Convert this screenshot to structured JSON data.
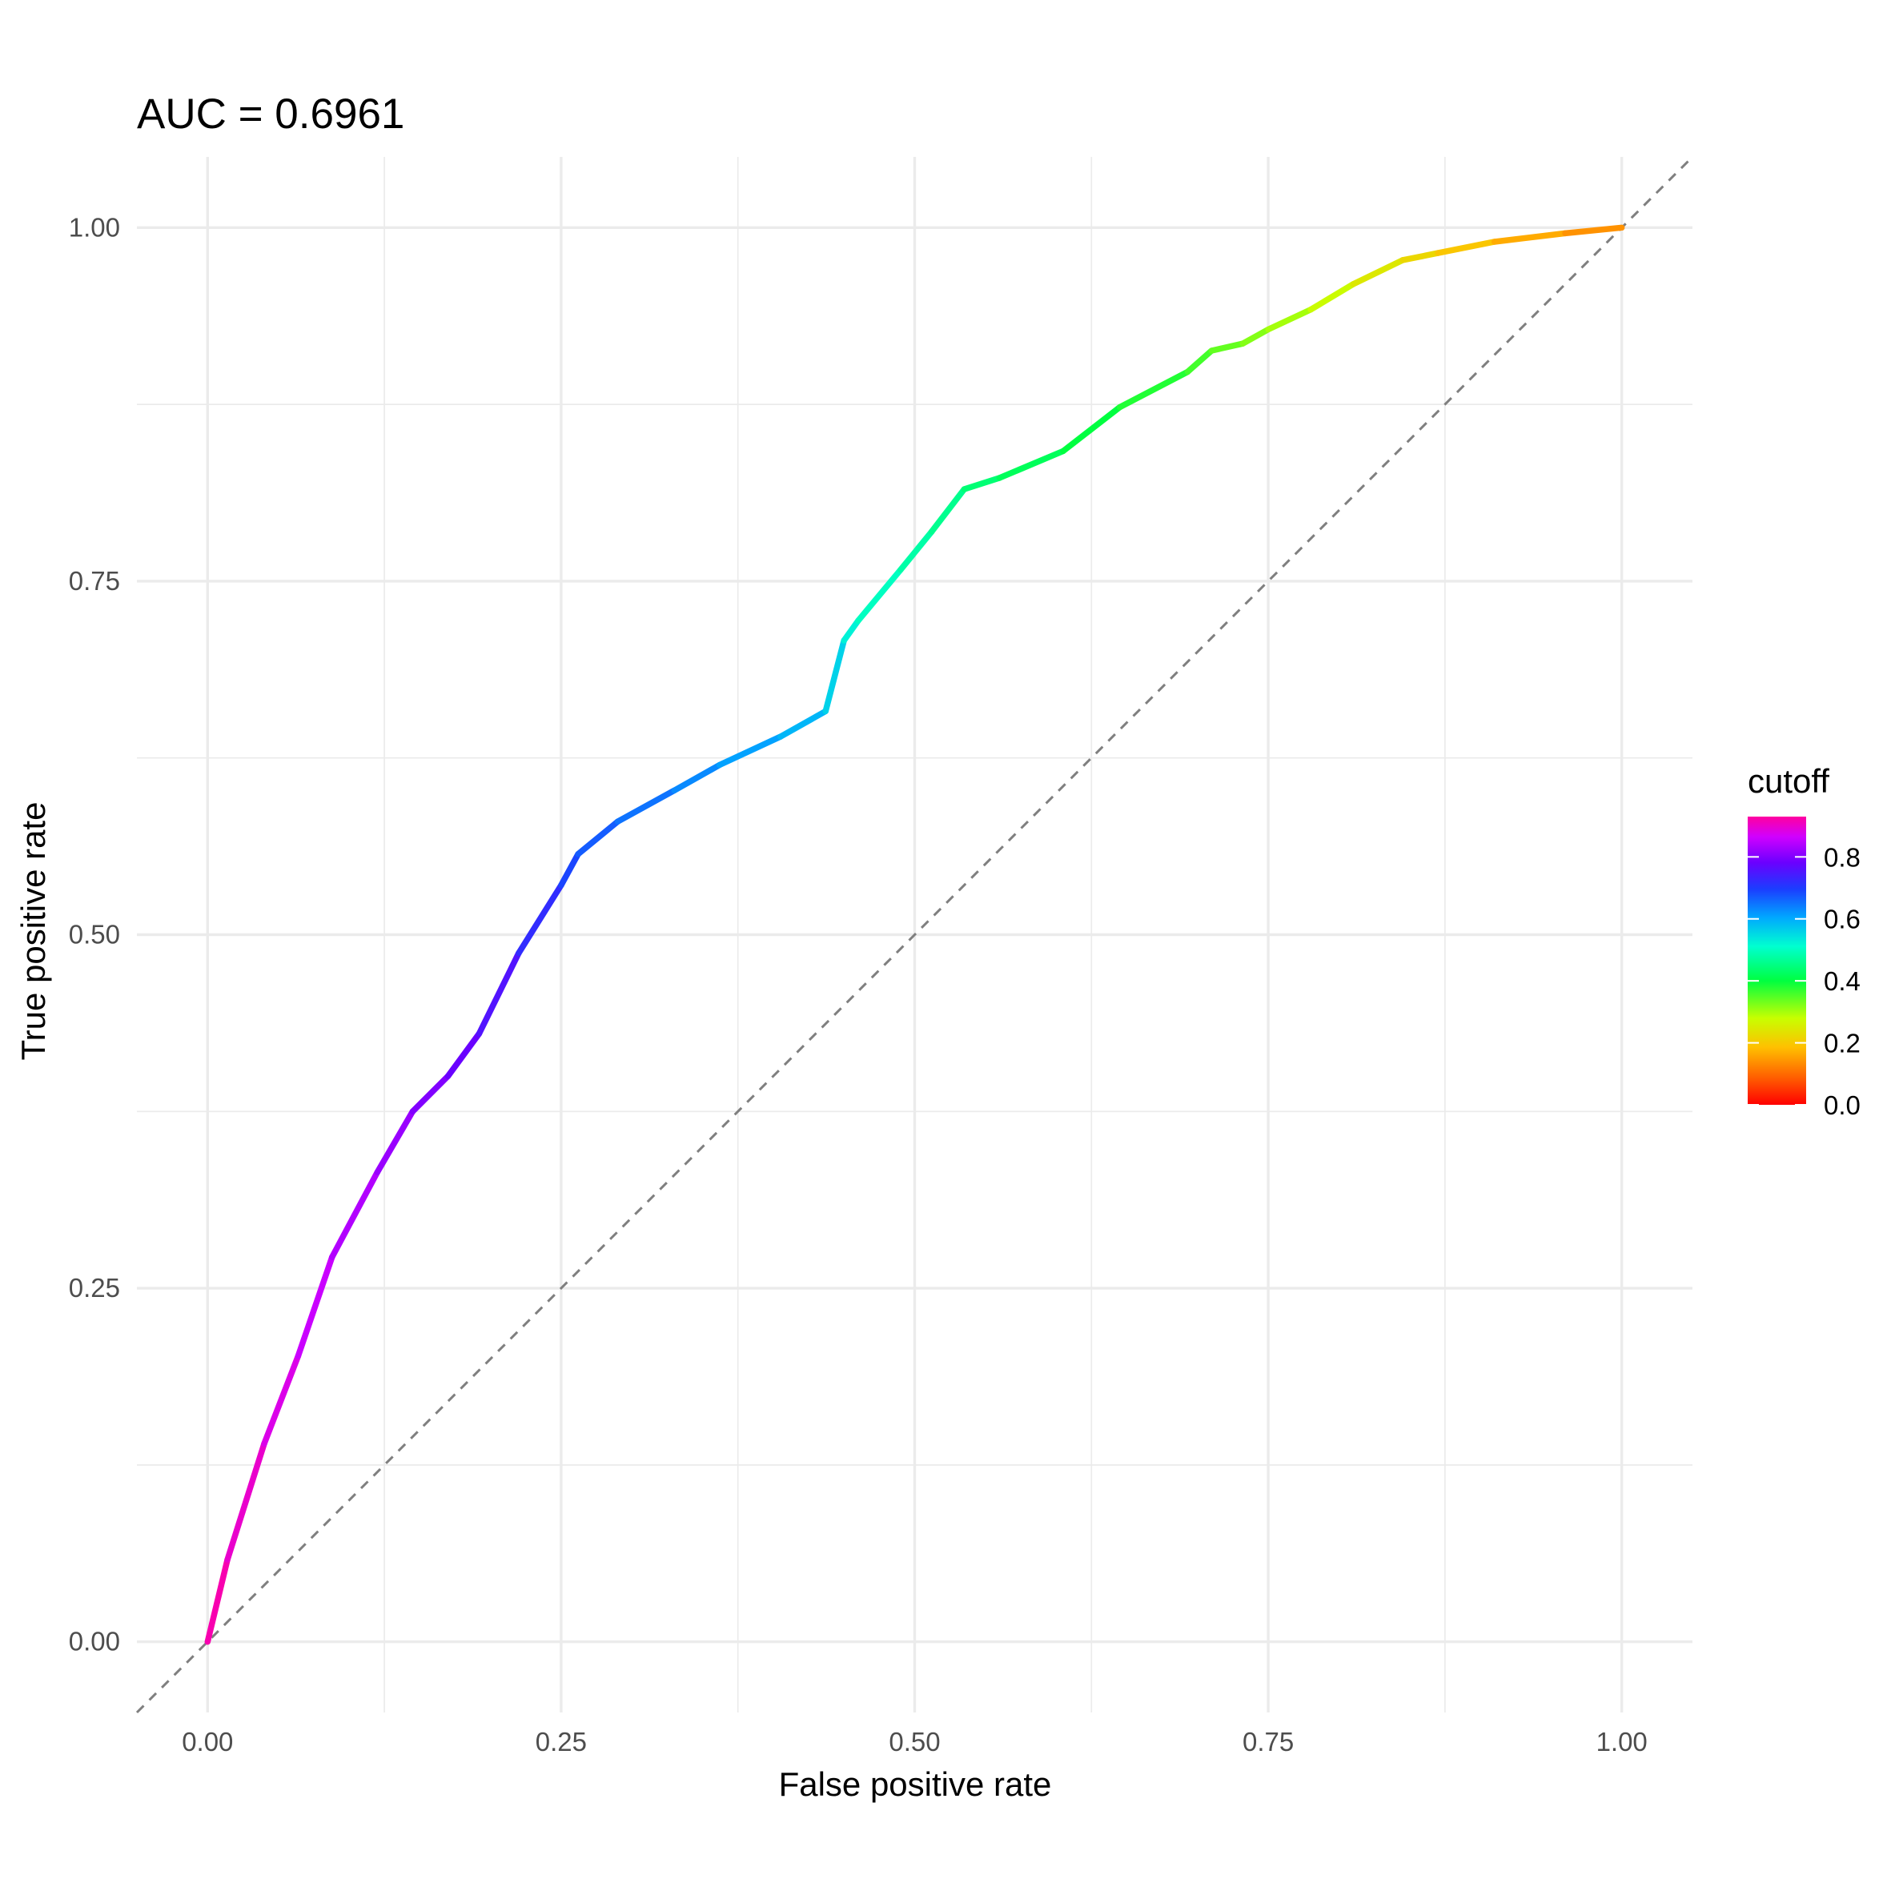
{
  "chart_data": {
    "type": "line",
    "title": "AUC = 0.6961",
    "xlabel": "False positive rate",
    "ylabel": "True positive rate",
    "xlim": [
      -0.05,
      1.05
    ],
    "ylim": [
      -0.05,
      1.05
    ],
    "x_ticks": [
      "0.00",
      "0.25",
      "0.50",
      "0.75",
      "1.00"
    ],
    "y_ticks": [
      "0.00",
      "0.25",
      "0.50",
      "0.75",
      "1.00"
    ],
    "grid": true,
    "reference_line": {
      "from": [
        0,
        0
      ],
      "to": [
        1,
        1
      ],
      "style": "dashed",
      "color": "#7f7f7f"
    },
    "series": [
      {
        "points": [
          {
            "x": 0.0,
            "y": 0.0,
            "cutoff": 0.93
          },
          {
            "x": 0.014,
            "y": 0.058,
            "cutoff": 0.91
          },
          {
            "x": 0.04,
            "y": 0.14,
            "cutoff": 0.89
          },
          {
            "x": 0.064,
            "y": 0.202,
            "cutoff": 0.87
          },
          {
            "x": 0.088,
            "y": 0.272,
            "cutoff": 0.85
          },
          {
            "x": 0.12,
            "y": 0.332,
            "cutoff": 0.83
          },
          {
            "x": 0.145,
            "y": 0.375,
            "cutoff": 0.81
          },
          {
            "x": 0.17,
            "y": 0.4,
            "cutoff": 0.79
          },
          {
            "x": 0.192,
            "y": 0.43,
            "cutoff": 0.77
          },
          {
            "x": 0.22,
            "y": 0.487,
            "cutoff": 0.74
          },
          {
            "x": 0.25,
            "y": 0.535,
            "cutoff": 0.7
          },
          {
            "x": 0.262,
            "y": 0.557,
            "cutoff": 0.68
          },
          {
            "x": 0.29,
            "y": 0.58,
            "cutoff": 0.66
          },
          {
            "x": 0.33,
            "y": 0.602,
            "cutoff": 0.64
          },
          {
            "x": 0.362,
            "y": 0.62,
            "cutoff": 0.62
          },
          {
            "x": 0.405,
            "y": 0.64,
            "cutoff": 0.6
          },
          {
            "x": 0.437,
            "y": 0.658,
            "cutoff": 0.58
          },
          {
            "x": 0.45,
            "y": 0.708,
            "cutoff": 0.54
          },
          {
            "x": 0.46,
            "y": 0.722,
            "cutoff": 0.51
          },
          {
            "x": 0.49,
            "y": 0.758,
            "cutoff": 0.49
          },
          {
            "x": 0.512,
            "y": 0.785,
            "cutoff": 0.47
          },
          {
            "x": 0.535,
            "y": 0.815,
            "cutoff": 0.45
          },
          {
            "x": 0.56,
            "y": 0.823,
            "cutoff": 0.43
          },
          {
            "x": 0.605,
            "y": 0.842,
            "cutoff": 0.41
          },
          {
            "x": 0.645,
            "y": 0.873,
            "cutoff": 0.39
          },
          {
            "x": 0.693,
            "y": 0.898,
            "cutoff": 0.37
          },
          {
            "x": 0.71,
            "y": 0.913,
            "cutoff": 0.35
          },
          {
            "x": 0.732,
            "y": 0.918,
            "cutoff": 0.33
          },
          {
            "x": 0.75,
            "y": 0.928,
            "cutoff": 0.31
          },
          {
            "x": 0.78,
            "y": 0.942,
            "cutoff": 0.29
          },
          {
            "x": 0.81,
            "y": 0.96,
            "cutoff": 0.26
          },
          {
            "x": 0.845,
            "y": 0.977,
            "cutoff": 0.23
          },
          {
            "x": 0.87,
            "y": 0.982,
            "cutoff": 0.21
          },
          {
            "x": 0.91,
            "y": 0.99,
            "cutoff": 0.18
          },
          {
            "x": 0.96,
            "y": 0.996,
            "cutoff": 0.15
          },
          {
            "x": 1.0,
            "y": 1.0,
            "cutoff": 0.13
          }
        ]
      }
    ],
    "legend": {
      "title": "cutoff",
      "position": "right",
      "range": [
        0.0,
        0.93
      ],
      "ticks": [
        "0.8",
        "0.6",
        "0.4",
        "0.2",
        "0.0"
      ],
      "colors": [
        "#ff0000",
        "#ff8000",
        "#ffff00",
        "#00ff00",
        "#00ffff",
        "#0000ff",
        "#8000ff",
        "#ff00c0"
      ]
    }
  }
}
